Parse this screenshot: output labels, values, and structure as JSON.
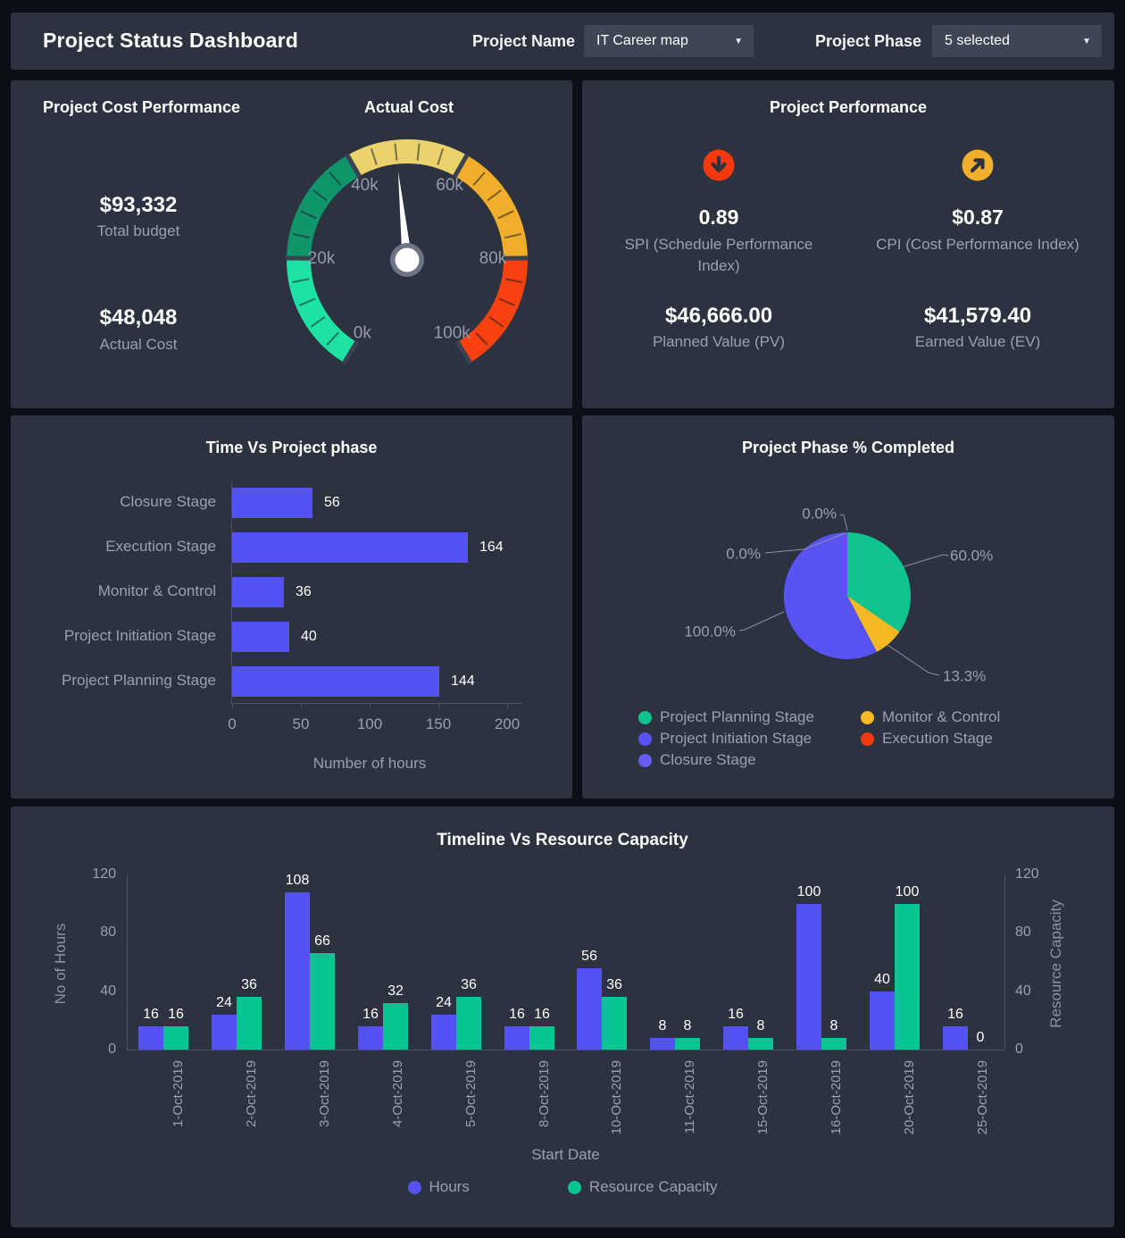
{
  "header": {
    "title": "Project Status Dashboard",
    "project_name_label": "Project Name",
    "project_name_value": "IT Career map",
    "project_phase_label": "Project Phase",
    "project_phase_value": "5 selected",
    "dropdown_caret": "▼"
  },
  "cost_panel": {
    "title": "Project Cost Performance",
    "stats": [
      {
        "value": "$93,332",
        "label": "Total budget"
      },
      {
        "value": "$48,048",
        "label": "Actual Cost"
      }
    ]
  },
  "performance_panel": {
    "title": "Project Performance",
    "metrics": [
      {
        "icon": "arrow-down-circle-icon",
        "icon_color": "#f5390f",
        "value": "0.89",
        "label": "SPI (Schedule Performance Index)"
      },
      {
        "icon": "arrow-up-right-circle-icon",
        "icon_color": "#f1b02b",
        "value": "$0.87",
        "label": "CPI (Cost Performance Index)"
      },
      {
        "value": "$46,666.00",
        "label": "Planned Value (PV)"
      },
      {
        "value": "$41,579.40",
        "label": "Earned Value (EV)"
      }
    ]
  },
  "chart_data": [
    {
      "id": "actual-cost-gauge",
      "type": "gauge",
      "title": "Actual Cost",
      "min": 0,
      "max": 100000,
      "value": 48048,
      "start_angle": -148.5,
      "end_angle": 148.5,
      "tick_labels": [
        "0k",
        "20k",
        "40k",
        "60k",
        "80k",
        "100k"
      ],
      "segments": [
        {
          "to": 20000,
          "color": "#1ee2a3"
        },
        {
          "to": 40000,
          "color": "#10946a"
        },
        {
          "to": 60000,
          "color": "#ebd26b"
        },
        {
          "to": 80000,
          "color": "#f1ae2b"
        },
        {
          "to": 100000,
          "color": "#f8410f"
        }
      ]
    },
    {
      "id": "time-vs-phase",
      "type": "bar",
      "orientation": "horizontal",
      "title": "Time Vs Project phase",
      "categories": [
        "Closure Stage",
        "Execution Stage",
        "Monitor & Control",
        "Project Initiation Stage",
        "Project Planning Stage"
      ],
      "values": [
        56,
        164,
        36,
        40,
        144
      ],
      "xlabel": "Number of hours",
      "xlim": [
        0,
        200
      ],
      "xticks": [
        0,
        50,
        100,
        150,
        200
      ],
      "bar_color": "#5452f2",
      "grid": false
    },
    {
      "id": "phase-completed",
      "type": "pie",
      "title": "Project Phase % Completed",
      "slices": [
        {
          "name": "Project Planning Stage",
          "value": 60.0,
          "label": "60.0%",
          "color": "#10c48f"
        },
        {
          "name": "Monitor & Control",
          "value": 13.3,
          "label": "13.3%",
          "color": "#f5ba21"
        },
        {
          "name": "Project Initiation Stage",
          "value": 100.0,
          "label": "100.0%",
          "color": "#5853f2"
        },
        {
          "name": "Execution Stage",
          "value": 0.0,
          "label": "0.0%",
          "color": "#f43b0f"
        },
        {
          "name": "Closure Stage",
          "value": 0.0,
          "label": "0.0%",
          "color": "#645df5"
        }
      ],
      "legend_position": "bottom"
    },
    {
      "id": "timeline-capacity",
      "type": "bar",
      "grouped": true,
      "title": "Timeline Vs Resource Capacity",
      "categories": [
        "1-Oct-2019",
        "2-Oct-2019",
        "3-Oct-2019",
        "4-Oct-2019",
        "5-Oct-2019",
        "8-Oct-2019",
        "10-Oct-2019",
        "11-Oct-2019",
        "15-Oct-2019",
        "16-Oct-2019",
        "20-Oct-2019",
        "25-Oct-2019"
      ],
      "series": [
        {
          "name": "Hours",
          "color": "#5452f2",
          "values": [
            16,
            24,
            108,
            16,
            24,
            16,
            56,
            8,
            16,
            100,
            40,
            16
          ]
        },
        {
          "name": "Resource Capacity",
          "color": "#06c592",
          "values": [
            16,
            36,
            66,
            32,
            36,
            16,
            36,
            8,
            8,
            8,
            100,
            0
          ]
        }
      ],
      "xlabel": "Start Date",
      "ylabel_left": "No of Hours",
      "ylabel_right": "Resource Capacity",
      "ylim": [
        0,
        120
      ],
      "yticks": [
        0,
        40,
        80,
        120
      ],
      "grid": false,
      "legend_position": "bottom"
    }
  ]
}
